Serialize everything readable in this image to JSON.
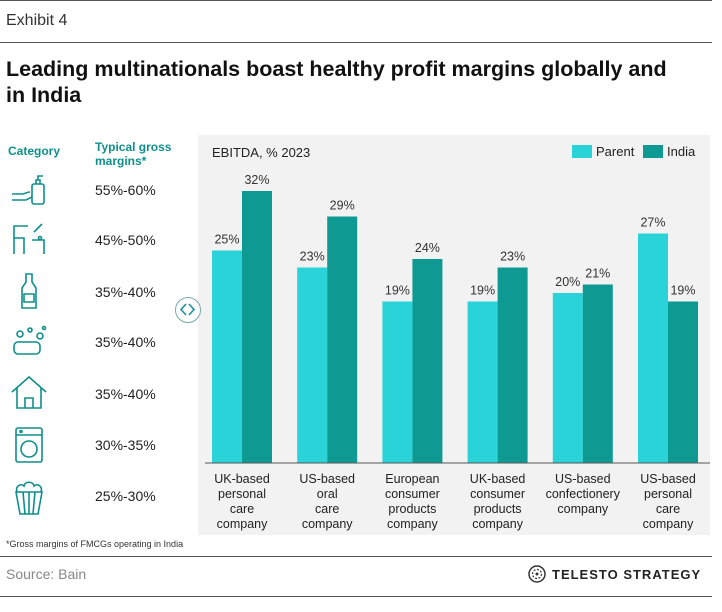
{
  "header": {
    "exhibit": "Exhibit 4",
    "title": "Leading multinationals boast healthy profit margins globally and in India"
  },
  "table": {
    "category_header": "Category",
    "margin_header": "Typical gross margins*",
    "rows": [
      {
        "icon": "hand-soap-icon",
        "margin": "55%-60%"
      },
      {
        "icon": "toothbrush-cleaning-icon",
        "margin": "45%-50%"
      },
      {
        "icon": "bottle-icon",
        "margin": "35%-40%"
      },
      {
        "icon": "soap-bubbles-icon",
        "margin": "35%-40%"
      },
      {
        "icon": "house-icon",
        "margin": "35%-40%"
      },
      {
        "icon": "washing-machine-icon",
        "margin": "30%-35%"
      },
      {
        "icon": "popcorn-icon",
        "margin": "25%-30%"
      }
    ]
  },
  "chart_data": {
    "type": "bar",
    "subtitle": "EBITDA, % 2023",
    "categories": [
      "UK-based personal care company",
      "US-based oral care company",
      "European consumer products company",
      "UK-based consumer products company",
      "US-based confectionery company",
      "US-based personal care company"
    ],
    "category_lines": [
      [
        "UK-based",
        "personal",
        "care",
        "company"
      ],
      [
        "US-based",
        "oral",
        "care",
        "company"
      ],
      [
        "European",
        "consumer",
        "products",
        "company"
      ],
      [
        "UK-based",
        "consumer",
        "products",
        "company"
      ],
      [
        "US-based",
        "confectionery",
        "company"
      ],
      [
        "US-based",
        "personal",
        "care",
        "company"
      ]
    ],
    "series": [
      {
        "name": "Parent",
        "color": "#29d3d8",
        "values": [
          25,
          23,
          19,
          19,
          20,
          27
        ],
        "labels": [
          "25%",
          "23%",
          "19%",
          "19%",
          "20%",
          "27%"
        ]
      },
      {
        "name": "India",
        "color": "#0e9a93",
        "values": [
          32,
          29,
          24,
          23,
          21,
          19
        ],
        "labels": [
          "32%",
          "29%",
          "24%",
          "23%",
          "21%",
          "19%"
        ]
      }
    ],
    "legend": "top-right",
    "ylim": [
      0,
      40
    ],
    "grid": false
  },
  "footer": {
    "footnote": "*Gross margins of FMCGs operating in India",
    "source": "Source: Bain",
    "brand": "TELESTO STRATEGY"
  }
}
